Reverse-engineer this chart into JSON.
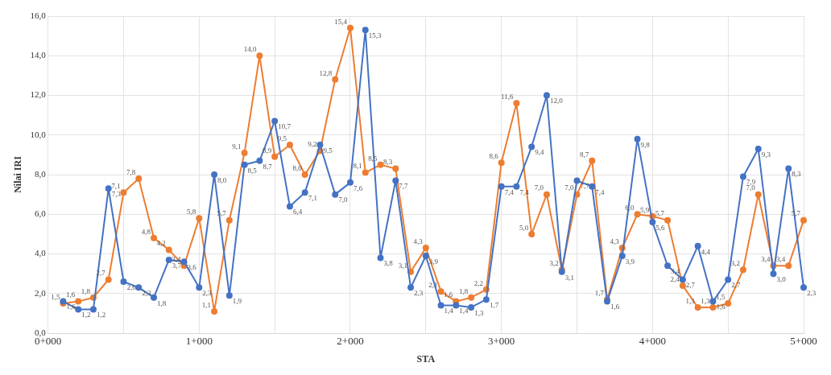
{
  "chart_data": {
    "type": "line",
    "xlabel": "STA",
    "ylabel": "Nilai IRI",
    "categories": [
      "0+000",
      null,
      null,
      null,
      null,
      null,
      null,
      null,
      null,
      null,
      "1+000",
      null,
      null,
      null,
      null,
      null,
      null,
      null,
      null,
      null,
      "2+000",
      null,
      null,
      null,
      null,
      null,
      null,
      null,
      null,
      null,
      "3+000",
      null,
      null,
      null,
      null,
      null,
      null,
      null,
      null,
      null,
      "4+000",
      null,
      null,
      null,
      null,
      null,
      null,
      null,
      null,
      null,
      "5+000"
    ],
    "series": [
      {
        "color": "#4472c4",
        "values": [
          null,
          1.6,
          1.2,
          1.2,
          7.3,
          2.6,
          2.3,
          1.8,
          3.7,
          3.6,
          2.3,
          8.0,
          1.9,
          8.5,
          8.7,
          10.7,
          6.4,
          7.1,
          9.5,
          7.0,
          7.6,
          15.3,
          3.8,
          7.7,
          2.3,
          3.9,
          1.4,
          1.4,
          1.3,
          1.7,
          7.4,
          7.4,
          9.4,
          12.0,
          3.1,
          7.7,
          7.4,
          1.6,
          3.9,
          9.8,
          5.6,
          3.4,
          2.7,
          4.4,
          1.6,
          2.7,
          7.9,
          9.3,
          3.0,
          8.3,
          2.3
        ],
        "value_labels": [
          null,
          "1,6",
          "1,2",
          "1,2",
          "7,3",
          "2,6",
          "2,3",
          "1,8",
          "3,7",
          "3,6",
          "2,3",
          "8,0",
          "1,9",
          "8,5",
          "8,7",
          "10,7",
          "6,4",
          "7,1",
          "9,5",
          "7,0",
          "7,6",
          "15,3",
          "3,8",
          "7,7",
          "2,3",
          "3,9",
          "1,4",
          "1,4",
          "1,3",
          "1,7",
          "7,4",
          "7,4",
          "9,4",
          "12,0",
          "3,1",
          "7,7",
          "7,4",
          "1,6",
          "3,9",
          "9,8",
          "5,6",
          "3,4",
          "2,7",
          "4,4",
          "1,6",
          "2,7",
          "7,9",
          "9,3",
          "3,0",
          "8,3",
          "2,3"
        ]
      },
      {
        "color": "#ed7d31",
        "values": [
          null,
          1.5,
          1.6,
          1.8,
          2.7,
          7.1,
          7.8,
          4.8,
          4.2,
          3.4,
          5.8,
          1.1,
          5.7,
          9.1,
          14.0,
          8.9,
          9.5,
          8.0,
          9.2,
          12.8,
          15.4,
          8.1,
          8.5,
          8.3,
          3.1,
          4.3,
          2.1,
          1.6,
          1.8,
          2.2,
          8.6,
          11.6,
          5.0,
          7.0,
          3.2,
          7.0,
          8.7,
          1.7,
          4.3,
          6.0,
          5.9,
          5.7,
          2.4,
          1.3,
          1.3,
          1.5,
          3.2,
          7.0,
          3.4,
          3.4,
          5.7
        ],
        "value_labels": [
          null,
          "1,5",
          "1,6",
          "1,8",
          "2,7",
          "7,1",
          "7,8",
          "4,8",
          "4,2",
          "3,4",
          "5,8",
          "1,1",
          "5,7",
          "9,1",
          "14,0",
          "8,9",
          "9,5",
          "8,0",
          "9,2",
          "12,8",
          "15,4",
          "8,1",
          "8,5",
          "8,3",
          "3,1",
          "4,3",
          "2,1",
          "1,6",
          "1,8",
          "2,2",
          "8,6",
          "11,6",
          "5,0",
          "7,0",
          "3,2",
          "7,0",
          "8,7",
          "1,7",
          "4,3",
          "6,0",
          "5,9",
          "5,7",
          "2,4",
          "1,3",
          "1,3",
          "1,5",
          "3,2",
          "7,0",
          "3,4",
          "3,4",
          "5,7"
        ]
      }
    ],
    "ylim": [
      0,
      16
    ],
    "yticks": [
      {
        "value": 0,
        "label": "0,0"
      },
      {
        "value": 2,
        "label": "2,0"
      },
      {
        "value": 4,
        "label": "4,0"
      },
      {
        "value": 6,
        "label": "6,0"
      },
      {
        "value": 8,
        "label": "8,0"
      },
      {
        "value": 10,
        "label": "10,0"
      },
      {
        "value": 12,
        "label": "12,0"
      },
      {
        "value": 14,
        "label": "14,0"
      },
      {
        "value": 16,
        "label": "16,0"
      }
    ],
    "grid": true,
    "legend": false,
    "marker": "circle",
    "line_style": "solid"
  }
}
